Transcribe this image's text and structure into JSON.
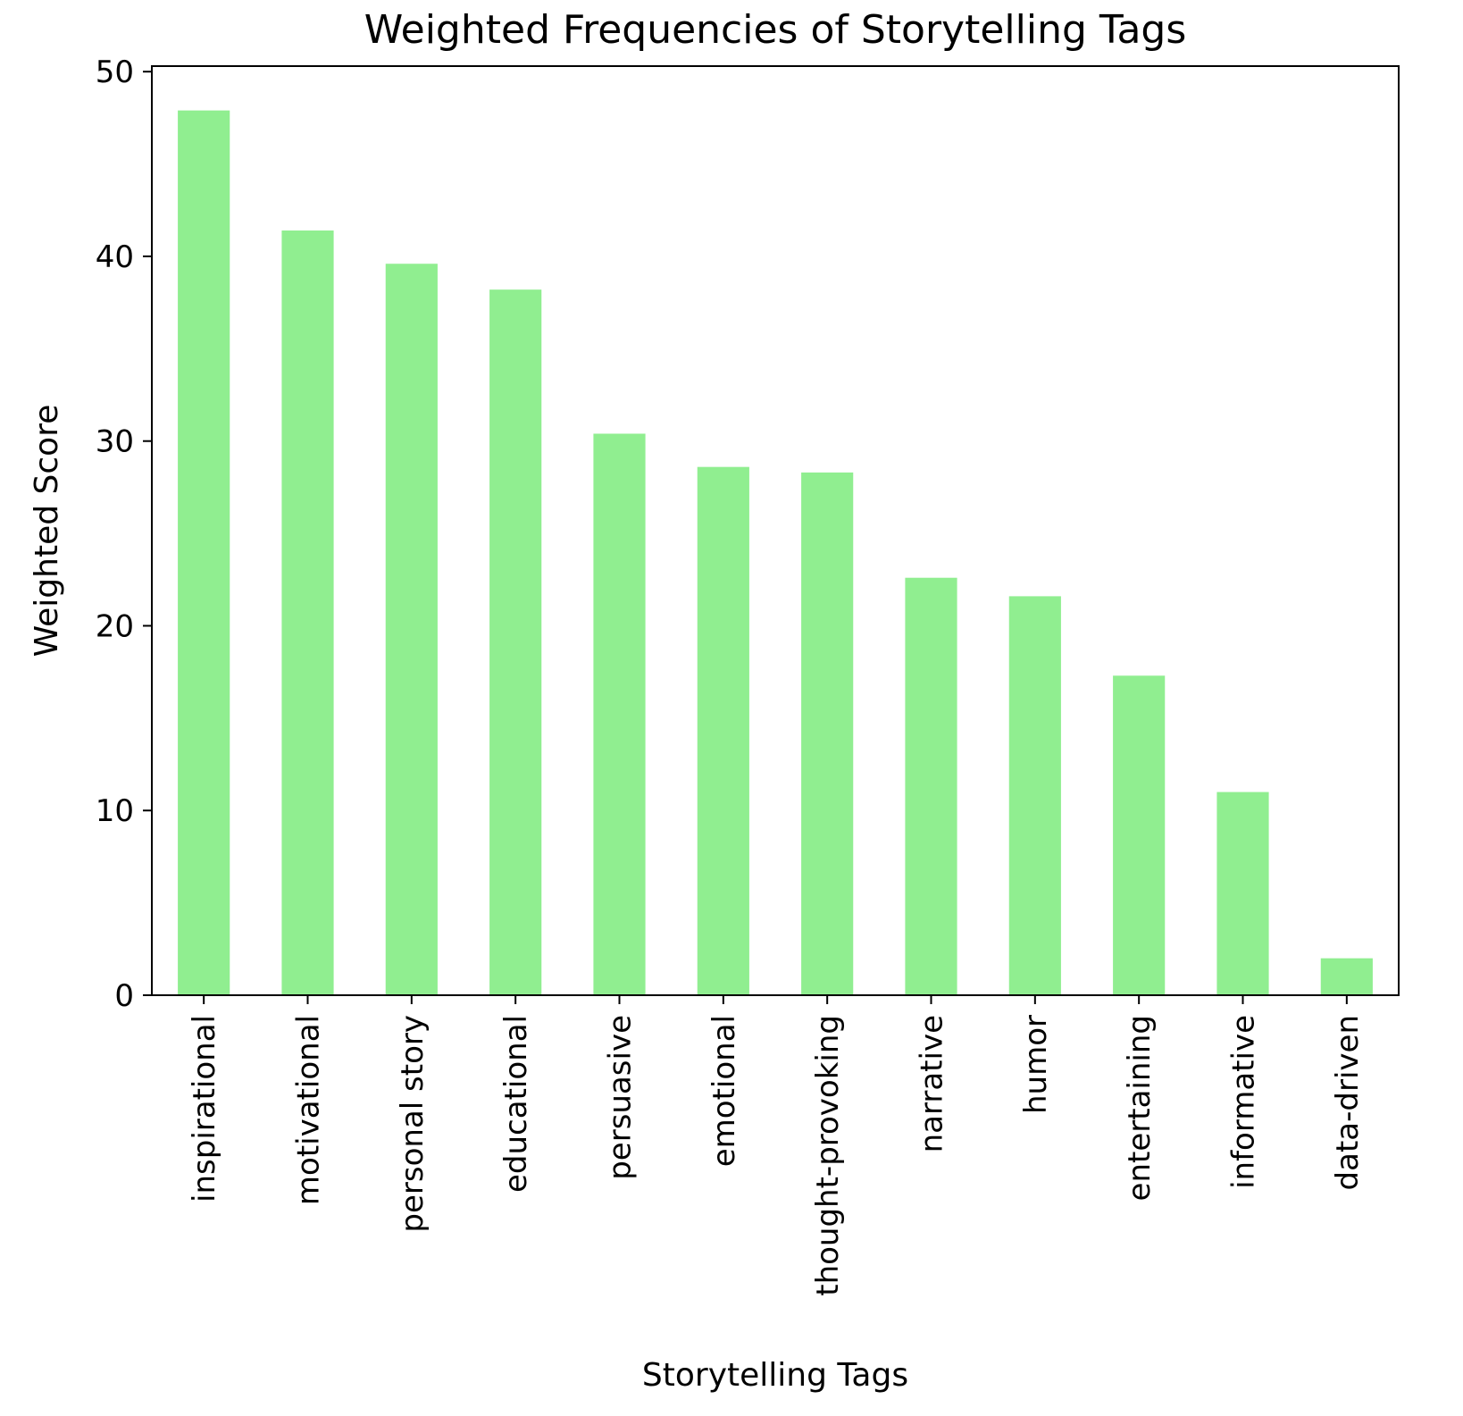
{
  "chart_data": {
    "type": "bar",
    "title": "Weighted Frequencies of Storytelling Tags",
    "xlabel": "Storytelling Tags",
    "ylabel": "Weighted Score",
    "categories": [
      "inspirational",
      "motivational",
      "personal story",
      "educational",
      "persuasive",
      "emotional",
      "thought-provoking",
      "narrative",
      "humor",
      "entertaining",
      "informative",
      "data-driven"
    ],
    "values": [
      47.9,
      41.4,
      39.6,
      38.2,
      30.4,
      28.6,
      28.3,
      22.6,
      21.6,
      17.3,
      11.0,
      2.0
    ],
    "ylim": [
      0,
      50.3
    ],
    "yticks": [
      0,
      10,
      20,
      30,
      40,
      50
    ],
    "grid": false,
    "legend": "none",
    "bar_color": "#90ee90",
    "axis_color": "#000000"
  }
}
